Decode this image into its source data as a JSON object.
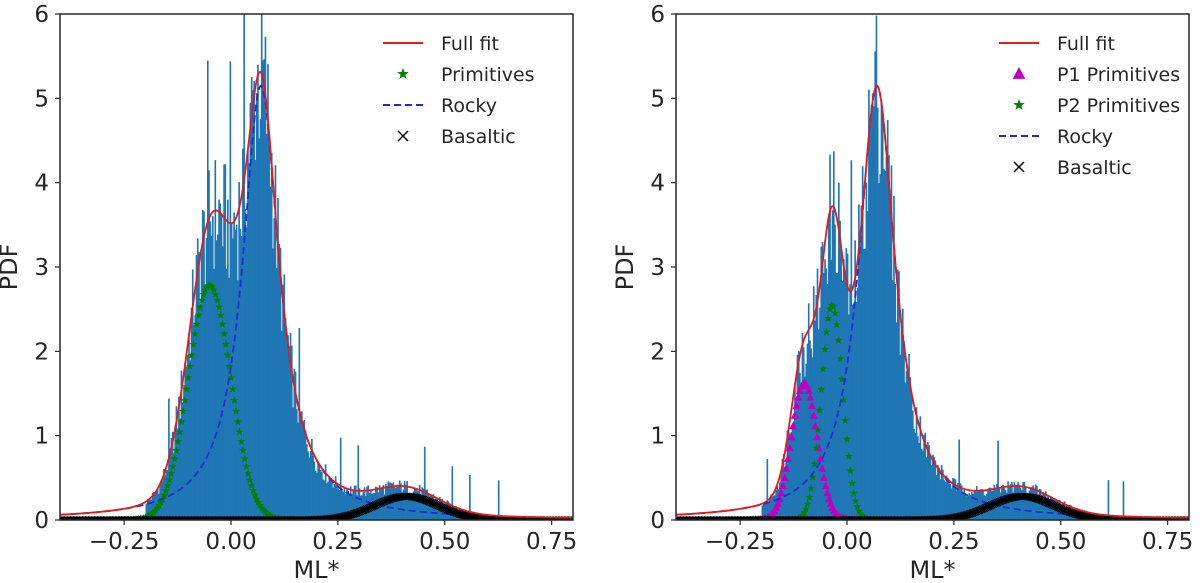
{
  "colors": {
    "hist": "#1f77b4",
    "full_fit": "#e41a1c",
    "primitives": "#008000",
    "p1": "#c000c0",
    "rocky": "#1f2bd6",
    "basaltic": "#000000",
    "frame": "#262626"
  },
  "chart_data": [
    {
      "type": "histogram_with_fits",
      "panel": "left",
      "xlabel": "ML*",
      "ylabel": "PDF",
      "xlim": [
        -0.4,
        0.8
      ],
      "ylim": [
        0,
        6
      ],
      "xticks": [
        -0.25,
        0.0,
        0.25,
        0.5,
        0.75
      ],
      "xtick_labels": [
        "−0.25",
        "0.00",
        "0.25",
        "0.50",
        "0.75"
      ],
      "yticks": [
        0,
        1,
        2,
        3,
        4,
        5,
        6
      ],
      "ytick_labels": [
        "0",
        "1",
        "2",
        "3",
        "4",
        "5",
        "6"
      ],
      "legend": {
        "position": "top-right",
        "entries": [
          {
            "label": "Full fit",
            "marker": "line",
            "color_key": "full_fit"
          },
          {
            "label": "Primitives",
            "marker": "star",
            "color_key": "primitives"
          },
          {
            "label": "Rocky",
            "marker": "dashed",
            "color_key": "rocky"
          },
          {
            "label": "Basaltic",
            "marker": "cross",
            "color_key": "basaltic"
          }
        ]
      },
      "components": [
        {
          "name": "Primitives",
          "style": "star",
          "color_key": "primitives",
          "mu": -0.05,
          "sigma": 0.05,
          "peak": 2.78
        },
        {
          "name": "Rocky",
          "style": "dashed",
          "color_key": "rocky",
          "mu": 0.07,
          "gamma": 0.052,
          "peak": 5.15
        },
        {
          "name": "Basaltic",
          "style": "cross",
          "color_key": "basaltic",
          "mu": 0.41,
          "sigma": 0.075,
          "peak": 0.28
        }
      ],
      "histogram_range": [
        -0.2,
        0.68
      ],
      "histogram_bins": 300
    },
    {
      "type": "histogram_with_fits",
      "panel": "right",
      "xlabel": "ML*",
      "ylabel": "PDF",
      "xlim": [
        -0.4,
        0.8
      ],
      "ylim": [
        0,
        6
      ],
      "xticks": [
        -0.25,
        0.0,
        0.25,
        0.5,
        0.75
      ],
      "xtick_labels": [
        "−0.25",
        "0.00",
        "0.25",
        "0.50",
        "0.75"
      ],
      "yticks": [
        0,
        1,
        2,
        3,
        4,
        5,
        6
      ],
      "ytick_labels": [
        "0",
        "1",
        "2",
        "3",
        "4",
        "5",
        "6"
      ],
      "legend": {
        "position": "top-right",
        "entries": [
          {
            "label": "Full fit",
            "marker": "line",
            "color_key": "full_fit"
          },
          {
            "label": "P1 Primitives",
            "marker": "triangle",
            "color_key": "p1"
          },
          {
            "label": "P2 Primitives",
            "marker": "star",
            "color_key": "primitives"
          },
          {
            "label": "Rocky",
            "marker": "dashed",
            "color_key": "rocky"
          },
          {
            "label": "Basaltic",
            "marker": "cross",
            "color_key": "basaltic"
          }
        ]
      },
      "components": [
        {
          "name": "P1 Primitives",
          "style": "triangle",
          "color_key": "p1",
          "mu": -0.1,
          "sigma": 0.03,
          "peak": 1.62
        },
        {
          "name": "P2 Primitives",
          "style": "star",
          "color_key": "primitives",
          "mu": -0.035,
          "sigma": 0.025,
          "peak": 2.55
        },
        {
          "name": "Rocky",
          "style": "dashed",
          "color_key": "rocky",
          "mu": 0.07,
          "gamma": 0.052,
          "peak": 5.15
        },
        {
          "name": "Basaltic",
          "style": "cross",
          "color_key": "basaltic",
          "mu": 0.41,
          "sigma": 0.075,
          "peak": 0.28
        }
      ],
      "histogram_range": [
        -0.2,
        0.68
      ],
      "histogram_bins": 300
    }
  ]
}
